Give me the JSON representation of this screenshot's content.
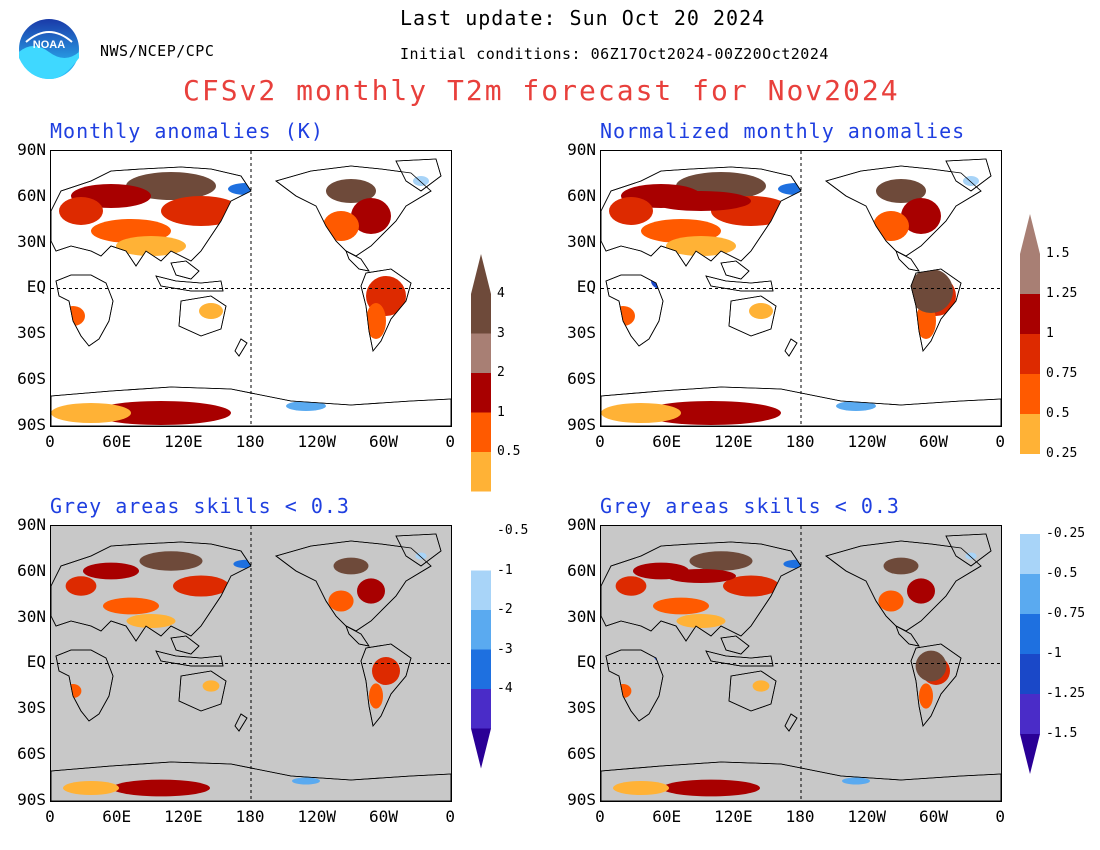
{
  "header": {
    "agency": "NWS/NCEP/CPC",
    "last_update": "Last update: Sun Oct 20 2024",
    "initial_conditions": "Initial conditions: 06Z17Oct2024-00Z20Oct2024",
    "title": "CFSv2 monthly T2m forecast for Nov2024",
    "logo_text": "NOAA"
  },
  "panels": {
    "top_left": {
      "title": "Monthly anomalies (K)"
    },
    "top_right": {
      "title": "Normalized monthly anomalies"
    },
    "bottom_left": {
      "title": "Grey areas skills < 0.3"
    },
    "bottom_right": {
      "title": "Grey areas skills < 0.3"
    }
  },
  "axes": {
    "lat_labels": [
      "90N",
      "60N",
      "30N",
      "EQ",
      "30S",
      "60S",
      "90S"
    ],
    "lon_labels": [
      "0",
      "60E",
      "120E",
      "180",
      "120W",
      "60W",
      "0"
    ]
  },
  "colorbar_left": {
    "labels": [
      "4",
      "3",
      "2",
      "1",
      "0.5",
      "-0.5",
      "-1",
      "-2",
      "-3",
      "-4"
    ]
  },
  "colorbar_right": {
    "labels": [
      "1.5",
      "1.25",
      "1",
      "0.75",
      "0.5",
      "0.25",
      "-0.25",
      "-0.5",
      "-0.75",
      "-1",
      "-1.25",
      "-1.5"
    ]
  },
  "colors": {
    "c1": "#6e4a3a",
    "c2": "#a87f74",
    "c3": "#a80000",
    "c4": "#dd2a00",
    "c5": "#ff5a00",
    "c6": "#ffb236",
    "neutral": "#ffffff",
    "b1": "#a8d4f8",
    "b2": "#5aaaf0",
    "b3": "#1e70e0",
    "b4": "#1a48c8",
    "b5": "#4a2cc8",
    "b6": "#2a0096",
    "grey": "#c8c8c8",
    "title_red": "#e8403c",
    "panel_title_blue": "#1f3fe0"
  }
}
